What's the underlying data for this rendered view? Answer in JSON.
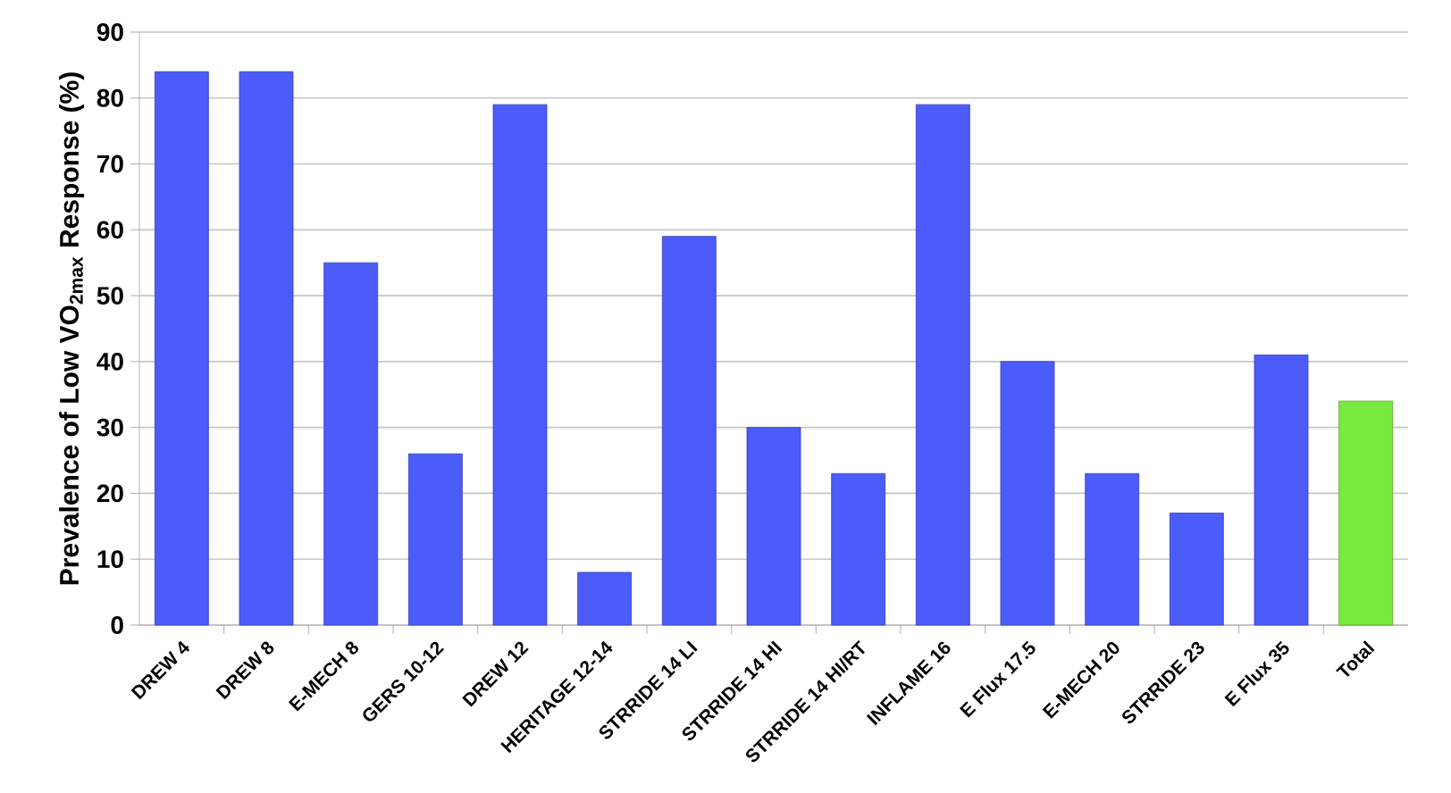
{
  "chart_data": {
    "type": "bar",
    "ylabel": "Prevalence of Low VO$_{2max}$ Response (%)",
    "categories": [
      "DREW 4",
      "DREW 8",
      "E-MECH 8",
      "GERS 10-12",
      "DREW 12",
      "HERITAGE 12-14",
      "STRRIDE 14 LI",
      "STRRIDE 14 HI",
      "STRRIDE 14 HI/RT",
      "INFLAME 16",
      "E Flux 17.5",
      "E-MECH 20",
      "STRRIDE 23",
      "E Flux 35",
      "Total"
    ],
    "values": [
      84,
      84,
      55,
      26,
      79,
      8,
      59,
      30,
      23,
      79,
      40,
      23,
      17,
      41,
      34
    ],
    "colors": [
      "#4b5cfb",
      "#4b5cfb",
      "#4b5cfb",
      "#4b5cfb",
      "#4b5cfb",
      "#4b5cfb",
      "#4b5cfb",
      "#4b5cfb",
      "#4b5cfb",
      "#4b5cfb",
      "#4b5cfb",
      "#4b5cfb",
      "#4b5cfb",
      "#4b5cfb",
      "#77ec3e"
    ],
    "ylim": [
      0,
      90
    ],
    "yticks": [
      0,
      10,
      20,
      30,
      40,
      50,
      60,
      70,
      80,
      90
    ],
    "grid": "y"
  }
}
